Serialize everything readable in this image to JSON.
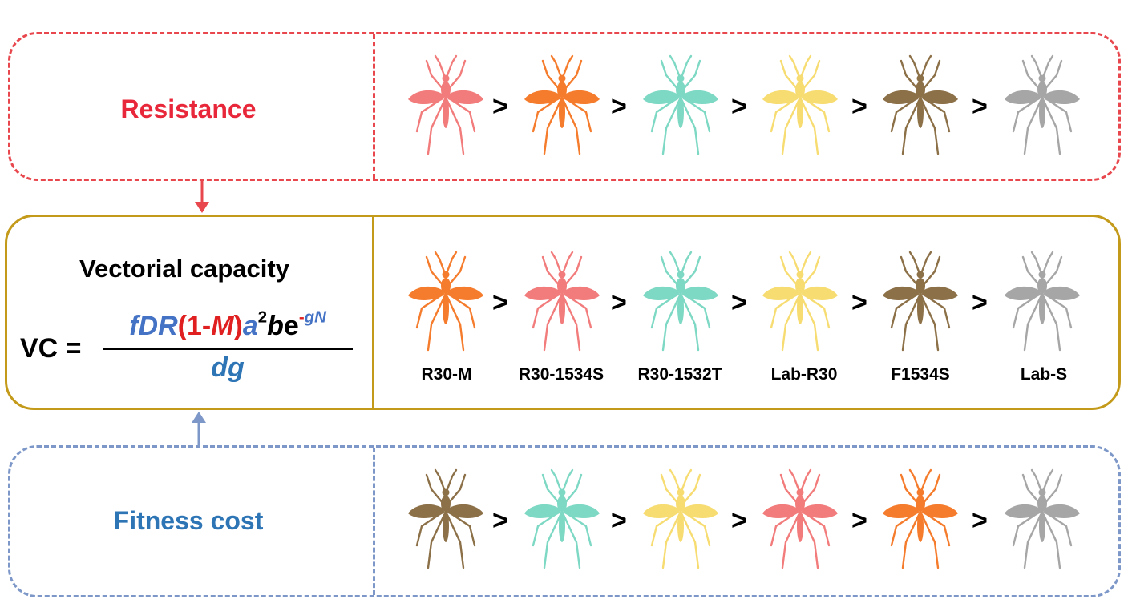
{
  "panels": {
    "resistance": {
      "label": "Resistance",
      "color": "#e8474d"
    },
    "vectorial": {
      "label": "Vectorial capacity",
      "color": "#c49a1a"
    },
    "fitness": {
      "label": "Fitness cost",
      "color": "#7d98c8"
    }
  },
  "formula": {
    "lhs": "VC =",
    "num": {
      "fDR": "fDR",
      "paren_open": "(",
      "one_minus": "1-",
      "M": "M",
      "paren_close": ")",
      "a": "a",
      "a_exp": "2",
      "b": "b",
      "e": "e",
      "e_exp_sign": "-",
      "e_exp_gN": "gN"
    },
    "den": "dg"
  },
  "strain_colors": {
    "R30-M": "#f57c2c",
    "R30-1534S": "#f27b7b",
    "R30-1532T": "#7dd8c4",
    "Lab-R30": "#f7dc72",
    "F1534S": "#8c7048",
    "Lab-S": "#a6a6a6"
  },
  "separator": ">",
  "rankings": {
    "resistance": [
      "R30-1534S",
      "R30-M",
      "R30-1532T",
      "Lab-R30",
      "F1534S",
      "Lab-S"
    ],
    "vectorial": [
      "R30-M",
      "R30-1534S",
      "R30-1532T",
      "Lab-R30",
      "F1534S",
      "Lab-S"
    ],
    "fitness": [
      "F1534S",
      "R30-1532T",
      "Lab-R30",
      "R30-1534S",
      "R30-M",
      "Lab-S"
    ]
  },
  "strain_labels": [
    "R30-M",
    "R30-1534S",
    "R30-1532T",
    "Lab-R30",
    "F1534S",
    "Lab-S"
  ]
}
